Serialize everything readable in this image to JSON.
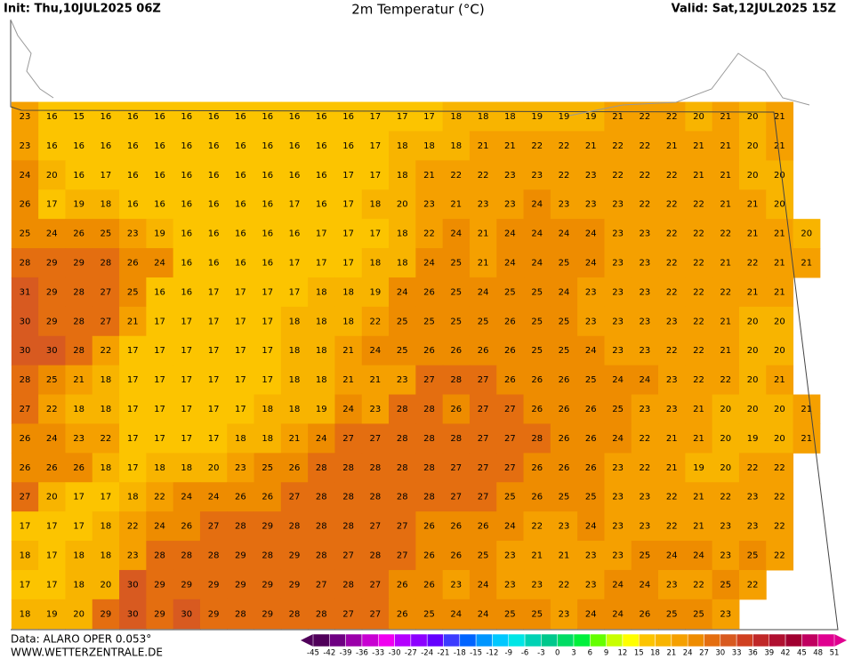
{
  "header": {
    "init": "Init: Thu,10JUL2025 06Z",
    "title": "2m Temperatur (°C)",
    "valid": "Valid: Sat,12JUL2025 15Z"
  },
  "grid": {
    "rows": [
      [
        23,
        16,
        15,
        16,
        16,
        16,
        16,
        16,
        16,
        16,
        16,
        16,
        16,
        17,
        17,
        17,
        18,
        18,
        18,
        19,
        19,
        19,
        21,
        22,
        22,
        20,
        21,
        20,
        21
      ],
      [
        23,
        16,
        16,
        16,
        16,
        16,
        16,
        16,
        16,
        16,
        16,
        16,
        16,
        17,
        18,
        18,
        18,
        21,
        21,
        22,
        22,
        21,
        22,
        22,
        21,
        21,
        21,
        20,
        21
      ],
      [
        24,
        20,
        16,
        17,
        16,
        16,
        16,
        16,
        16,
        16,
        16,
        16,
        17,
        17,
        18,
        21,
        22,
        22,
        23,
        23,
        22,
        23,
        22,
        22,
        22,
        21,
        21,
        20,
        20
      ],
      [
        26,
        17,
        19,
        18,
        16,
        16,
        16,
        16,
        16,
        16,
        17,
        16,
        17,
        18,
        20,
        23,
        21,
        23,
        23,
        24,
        23,
        23,
        23,
        22,
        22,
        22,
        21,
        21,
        20
      ],
      [
        25,
        24,
        26,
        25,
        23,
        19,
        16,
        16,
        16,
        16,
        16,
        17,
        17,
        17,
        18,
        22,
        24,
        21,
        24,
        24,
        24,
        24,
        23,
        23,
        22,
        22,
        22,
        21,
        21,
        20
      ],
      [
        28,
        29,
        29,
        28,
        26,
        24,
        16,
        16,
        16,
        16,
        17,
        17,
        17,
        18,
        18,
        24,
        25,
        21,
        24,
        24,
        25,
        24,
        23,
        23,
        22,
        22,
        21,
        22,
        21,
        21
      ],
      [
        31,
        29,
        28,
        27,
        25,
        16,
        16,
        17,
        17,
        17,
        17,
        18,
        18,
        19,
        24,
        26,
        25,
        24,
        25,
        25,
        24,
        23,
        23,
        23,
        22,
        22,
        22,
        21,
        21
      ],
      [
        30,
        29,
        28,
        27,
        21,
        17,
        17,
        17,
        17,
        17,
        18,
        18,
        18,
        22,
        25,
        25,
        25,
        25,
        26,
        25,
        25,
        23,
        23,
        23,
        23,
        22,
        21,
        20,
        20
      ],
      [
        30,
        30,
        28,
        22,
        17,
        17,
        17,
        17,
        17,
        17,
        18,
        18,
        21,
        24,
        25,
        26,
        26,
        26,
        26,
        25,
        25,
        24,
        23,
        23,
        22,
        22,
        21,
        20,
        20
      ],
      [
        28,
        25,
        21,
        18,
        17,
        17,
        17,
        17,
        17,
        17,
        18,
        18,
        21,
        21,
        23,
        27,
        28,
        27,
        26,
        26,
        26,
        25,
        24,
        24,
        23,
        22,
        22,
        20,
        21
      ],
      [
        27,
        22,
        18,
        18,
        17,
        17,
        17,
        17,
        17,
        18,
        18,
        19,
        24,
        23,
        28,
        28,
        26,
        27,
        27,
        26,
        26,
        26,
        25,
        23,
        23,
        21,
        20,
        20,
        20,
        21
      ],
      [
        26,
        24,
        23,
        22,
        17,
        17,
        17,
        17,
        18,
        18,
        21,
        24,
        27,
        27,
        28,
        28,
        28,
        27,
        27,
        28,
        26,
        26,
        24,
        22,
        21,
        21,
        20,
        19,
        20,
        21
      ],
      [
        26,
        26,
        26,
        18,
        17,
        18,
        18,
        20,
        23,
        25,
        26,
        28,
        28,
        28,
        28,
        28,
        27,
        27,
        27,
        26,
        26,
        26,
        23,
        22,
        21,
        19,
        20,
        22,
        22
      ],
      [
        27,
        20,
        17,
        17,
        18,
        22,
        24,
        24,
        26,
        26,
        27,
        28,
        28,
        28,
        28,
        28,
        27,
        27,
        25,
        26,
        25,
        25,
        23,
        23,
        22,
        21,
        22,
        23,
        22
      ],
      [
        17,
        17,
        17,
        18,
        22,
        24,
        26,
        27,
        28,
        29,
        28,
        28,
        28,
        27,
        27,
        26,
        26,
        26,
        24,
        22,
        23,
        24,
        23,
        23,
        22,
        21,
        23,
        23,
        22
      ],
      [
        18,
        17,
        18,
        18,
        23,
        28,
        28,
        28,
        29,
        28,
        29,
        28,
        27,
        28,
        27,
        26,
        26,
        25,
        23,
        21,
        21,
        23,
        23,
        25,
        24,
        24,
        23,
        25,
        22
      ],
      [
        17,
        17,
        18,
        20,
        30,
        29,
        29,
        29,
        29,
        29,
        29,
        27,
        28,
        27,
        26,
        26,
        23,
        24,
        23,
        23,
        22,
        23,
        24,
        24,
        23,
        22,
        25,
        22
      ],
      [
        18,
        19,
        20,
        29,
        30,
        29,
        30,
        29,
        28,
        29,
        28,
        28,
        27,
        27,
        26,
        25,
        24,
        24,
        25,
        25,
        23,
        24,
        24,
        26,
        25,
        25,
        23
      ]
    ]
  },
  "colorbar": {
    "labels": [
      -45,
      -42,
      -39,
      -36,
      -33,
      -30,
      -27,
      -24,
      -21,
      -18,
      -15,
      -12,
      -9,
      -6,
      -3,
      0,
      3,
      6,
      9,
      12,
      15,
      18,
      21,
      24,
      27,
      30,
      33,
      36,
      39,
      42,
      45,
      48,
      51
    ],
    "colors": [
      "#50005a",
      "#6e0082",
      "#9b00aa",
      "#c800d2",
      "#f000f0",
      "#b400ff",
      "#8c00ff",
      "#6400ff",
      "#3c3cff",
      "#0064ff",
      "#0096ff",
      "#00c8ff",
      "#00e6e6",
      "#00d2b4",
      "#00c88c",
      "#00dc64",
      "#00f03c",
      "#64ff00",
      "#c8ff00",
      "#ffff00",
      "#fcc400",
      "#f8b400",
      "#f5a000",
      "#ee8c00",
      "#e46e10",
      "#d85a20",
      "#d04020",
      "#c02828",
      "#b01030",
      "#a00030",
      "#c00060",
      "#e00090"
    ]
  },
  "footer": {
    "data": "Data: ALARO OPER 0.053°",
    "site": "WWW.WETTERZENTRALE.DE"
  }
}
